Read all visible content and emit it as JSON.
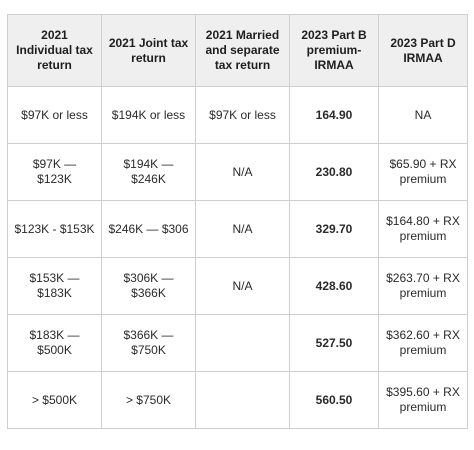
{
  "table": {
    "headers": [
      "2021 Individual tax return",
      "2021 Joint tax return",
      "2021 Married and separate tax return",
      "2023 Part B premium-IRMAA",
      "2023 Part D IRMAA"
    ],
    "rows": [
      [
        "$97K or less",
        "$194K or less",
        "$97K or less",
        "164.90",
        "NA"
      ],
      [
        "$97K — $123K",
        "$194K — $246K",
        "N/A",
        "230.80",
        "$65.90 + RX premium"
      ],
      [
        "$123K - $153K",
        "$246K — $306",
        "N/A",
        "329.70",
        "$164.80 + RX premium"
      ],
      [
        "$153K — $183K",
        "$306K — $366K",
        "N/A",
        "428.60",
        "$263.70 + RX premium"
      ],
      [
        "$183K — $500K",
        "$366K — $750K",
        "",
        "527.50",
        "$362.60 + RX premium"
      ],
      [
        "> $500K",
        "> $750K",
        "",
        "560.50",
        "$395.60 + RX premium"
      ]
    ]
  }
}
